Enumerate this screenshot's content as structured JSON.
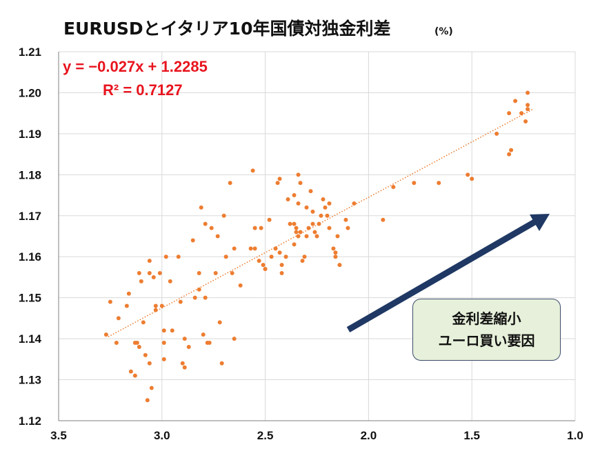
{
  "title": "EURUSDとイタリア10年国債対独金利差",
  "title_unit": "(%)",
  "equation": "y = −0.027x + 1.2285",
  "r_squared": "R² = 0.7127",
  "callout": {
    "line1": "金利差縮小",
    "line2": "ユーロ買い要因"
  },
  "colors": {
    "points": "#ed7d31",
    "trendline": "#ed7d31",
    "equation": "#e8141e",
    "arrow": "#1f3864",
    "callout_bg": "#e6f0da",
    "grid": "#d9d9d9"
  },
  "chart_data": {
    "type": "scatter",
    "x_axis": {
      "min": 1.0,
      "max": 3.5,
      "reversed": true,
      "ticks": [
        3.5,
        3.0,
        2.5,
        2.0,
        1.5,
        1.0
      ],
      "tick_labels": [
        "3.5",
        "3.0",
        "2.5",
        "2.0",
        "1.5",
        "1.0"
      ]
    },
    "y_axis": {
      "min": 1.12,
      "max": 1.21,
      "ticks": [
        1.12,
        1.13,
        1.14,
        1.15,
        1.16,
        1.17,
        1.18,
        1.19,
        1.2,
        1.21
      ],
      "tick_labels": [
        "1.12",
        "1.13",
        "1.14",
        "1.15",
        "1.16",
        "1.17",
        "1.18",
        "1.19",
        "1.20",
        "1.21"
      ]
    },
    "grid": true,
    "trendline": {
      "slope": -0.027,
      "intercept": 1.2285,
      "x_from": 3.26,
      "x_to": 1.2
    },
    "points": [
      [
        3.27,
        1.141
      ],
      [
        3.25,
        1.149
      ],
      [
        3.22,
        1.139
      ],
      [
        3.21,
        1.145
      ],
      [
        3.17,
        1.148
      ],
      [
        3.16,
        1.151
      ],
      [
        3.15,
        1.132
      ],
      [
        3.13,
        1.131
      ],
      [
        3.13,
        1.139
      ],
      [
        3.12,
        1.139
      ],
      [
        3.11,
        1.138
      ],
      [
        3.11,
        1.156
      ],
      [
        3.1,
        1.154
      ],
      [
        3.09,
        1.144
      ],
      [
        3.08,
        1.136
      ],
      [
        3.07,
        1.125
      ],
      [
        3.06,
        1.134
      ],
      [
        3.06,
        1.159
      ],
      [
        3.06,
        1.156
      ],
      [
        3.05,
        1.128
      ],
      [
        3.04,
        1.155
      ],
      [
        3.03,
        1.148
      ],
      [
        3.03,
        1.147
      ],
      [
        3.01,
        1.156
      ],
      [
        3.0,
        1.148
      ],
      [
        2.99,
        1.135
      ],
      [
        2.99,
        1.142
      ],
      [
        2.99,
        1.139
      ],
      [
        2.98,
        1.16
      ],
      [
        2.96,
        1.154
      ],
      [
        2.95,
        1.142
      ],
      [
        2.92,
        1.16
      ],
      [
        2.91,
        1.149
      ],
      [
        2.9,
        1.134
      ],
      [
        2.89,
        1.133
      ],
      [
        2.89,
        1.14
      ],
      [
        2.87,
        1.138
      ],
      [
        2.85,
        1.164
      ],
      [
        2.84,
        1.15
      ],
      [
        2.82,
        1.156
      ],
      [
        2.82,
        1.152
      ],
      [
        2.81,
        1.172
      ],
      [
        2.8,
        1.141
      ],
      [
        2.79,
        1.168
      ],
      [
        2.79,
        1.15
      ],
      [
        2.78,
        1.139
      ],
      [
        2.77,
        1.139
      ],
      [
        2.76,
        1.167
      ],
      [
        2.74,
        1.156
      ],
      [
        2.73,
        1.165
      ],
      [
        2.72,
        1.144
      ],
      [
        2.71,
        1.134
      ],
      [
        2.7,
        1.17
      ],
      [
        2.69,
        1.16
      ],
      [
        2.67,
        1.178
      ],
      [
        2.66,
        1.156
      ],
      [
        2.65,
        1.162
      ],
      [
        2.65,
        1.14
      ],
      [
        2.62,
        1.153
      ],
      [
        2.57,
        1.162
      ],
      [
        2.56,
        1.181
      ],
      [
        2.55,
        1.167
      ],
      [
        2.55,
        1.162
      ],
      [
        2.53,
        1.159
      ],
      [
        2.52,
        1.167
      ],
      [
        2.51,
        1.158
      ],
      [
        2.5,
        1.157
      ],
      [
        2.5,
        1.157
      ],
      [
        2.48,
        1.169
      ],
      [
        2.47,
        1.16
      ],
      [
        2.45,
        1.162
      ],
      [
        2.44,
        1.178
      ],
      [
        2.43,
        1.179
      ],
      [
        2.43,
        1.161
      ],
      [
        2.42,
        1.156
      ],
      [
        2.42,
        1.158
      ],
      [
        2.4,
        1.16
      ],
      [
        2.39,
        1.174
      ],
      [
        2.38,
        1.168
      ],
      [
        2.36,
        1.163
      ],
      [
        2.36,
        1.175
      ],
      [
        2.36,
        1.168
      ],
      [
        2.35,
        1.167
      ],
      [
        2.35,
        1.166
      ],
      [
        2.34,
        1.18
      ],
      [
        2.34,
        1.173
      ],
      [
        2.34,
        1.165
      ],
      [
        2.33,
        1.166
      ],
      [
        2.33,
        1.178
      ],
      [
        2.32,
        1.159
      ],
      [
        2.31,
        1.16
      ],
      [
        2.3,
        1.172
      ],
      [
        2.3,
        1.165
      ],
      [
        2.29,
        1.167
      ],
      [
        2.28,
        1.176
      ],
      [
        2.27,
        1.171
      ],
      [
        2.27,
        1.168
      ],
      [
        2.26,
        1.166
      ],
      [
        2.25,
        1.165
      ],
      [
        2.24,
        1.168
      ],
      [
        2.23,
        1.17
      ],
      [
        2.22,
        1.174
      ],
      [
        2.21,
        1.172
      ],
      [
        2.2,
        1.17
      ],
      [
        2.19,
        1.173
      ],
      [
        2.19,
        1.167
      ],
      [
        2.17,
        1.162
      ],
      [
        2.16,
        1.161
      ],
      [
        2.16,
        1.16
      ],
      [
        2.15,
        1.165
      ],
      [
        2.14,
        1.158
      ],
      [
        2.11,
        1.169
      ],
      [
        2.1,
        1.167
      ],
      [
        2.07,
        1.173
      ],
      [
        1.93,
        1.169
      ],
      [
        1.88,
        1.177
      ],
      [
        1.78,
        1.178
      ],
      [
        1.66,
        1.178
      ],
      [
        1.52,
        1.18
      ],
      [
        1.5,
        1.179
      ],
      [
        1.38,
        1.19
      ],
      [
        1.32,
        1.185
      ],
      [
        1.32,
        1.195
      ],
      [
        1.31,
        1.186
      ],
      [
        1.29,
        1.198
      ],
      [
        1.26,
        1.195
      ],
      [
        1.24,
        1.193
      ],
      [
        1.23,
        1.2
      ],
      [
        1.23,
        1.197
      ],
      [
        1.23,
        1.196
      ]
    ]
  }
}
